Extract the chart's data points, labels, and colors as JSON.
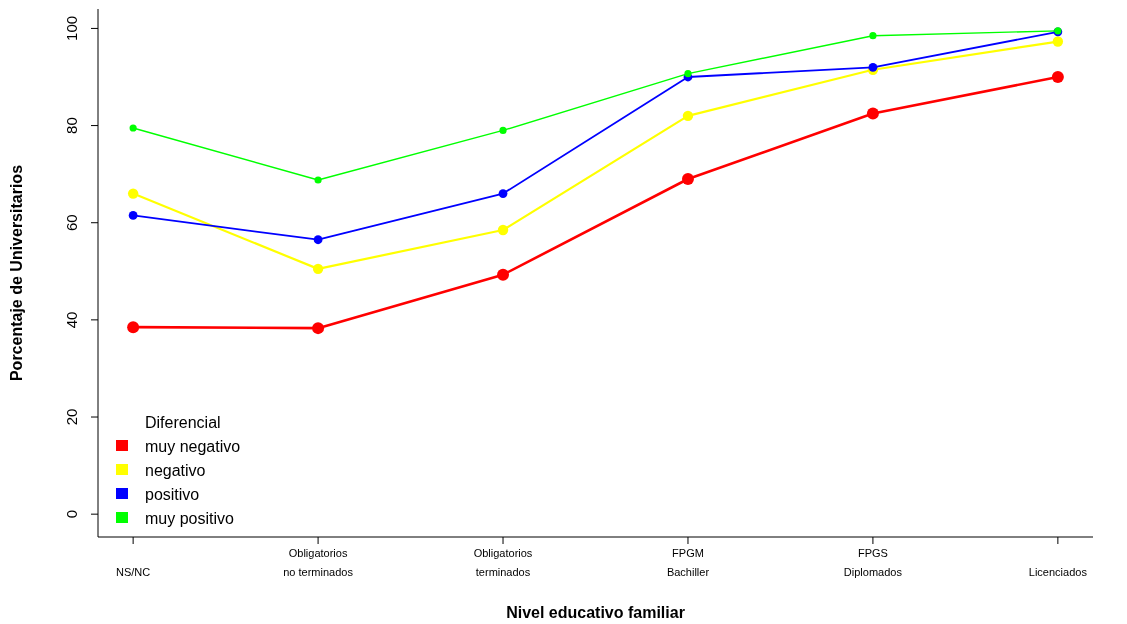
{
  "chart_data": {
    "type": "line",
    "xlabel": "Nivel educativo familiar",
    "ylabel": "Porcentaje de Universitarios",
    "legend_title": "Diferencial",
    "categories": [
      "NS/NC",
      "Obligatorios\nno terminados",
      "Obligatorios\nterminados",
      "FPGM\nBachiller",
      "FPGS\nDiplomados",
      "Licenciados"
    ],
    "series": [
      {
        "name": "muy negativo",
        "color": "#ff0000",
        "values": [
          38.5,
          38.3,
          49.3,
          69,
          82.5,
          90
        ]
      },
      {
        "name": "negativo",
        "color": "#ffff00",
        "values": [
          66,
          50.5,
          58.5,
          82,
          91.5,
          97.3
        ]
      },
      {
        "name": "positivo",
        "color": "#0000ff",
        "values": [
          61.5,
          56.5,
          66,
          90,
          92,
          99.3
        ]
      },
      {
        "name": "muy positivo",
        "color": "#00ff00",
        "values": [
          79.5,
          68.8,
          79,
          90.7,
          98.5,
          99.5
        ]
      }
    ],
    "ylim": [
      -4.7,
      104
    ],
    "yticks": [
      0,
      20,
      40,
      60,
      80,
      100
    ],
    "grid": false,
    "legend": "bottom left",
    "marker": "circle",
    "line_style": "solid"
  }
}
